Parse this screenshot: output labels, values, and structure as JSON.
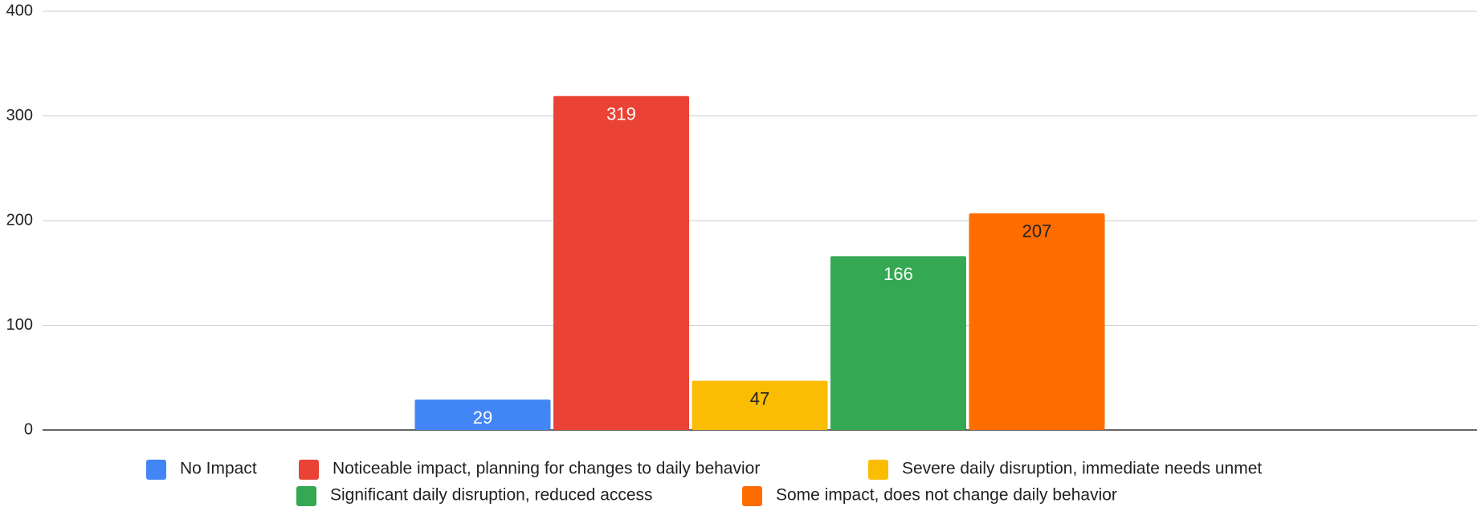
{
  "chart_data": {
    "type": "bar",
    "categories": [
      null
    ],
    "series": [
      {
        "name": "No Impact",
        "color": "#4285f4",
        "label_color": "#ffffff",
        "values": [
          29
        ]
      },
      {
        "name": "Noticeable impact, planning for changes to daily behavior",
        "color": "#ea4335",
        "label_color": "#ffffff",
        "values": [
          319
        ]
      },
      {
        "name": "Severe daily disruption, immediate needs unmet",
        "color": "#fbbc04",
        "label_color": "#222222",
        "values": [
          47
        ]
      },
      {
        "name": "Significant daily disruption, reduced access",
        "color": "#34a853",
        "label_color": "#ffffff",
        "values": [
          166
        ]
      },
      {
        "name": "Some impact, does not change daily behavior",
        "color": "#ff6d01",
        "label_color": "#222222",
        "values": [
          207
        ]
      }
    ],
    "ylim": [
      0,
      400
    ],
    "yticks": [
      0,
      100,
      200,
      300,
      400
    ],
    "grid": true,
    "legend": "bottom"
  }
}
